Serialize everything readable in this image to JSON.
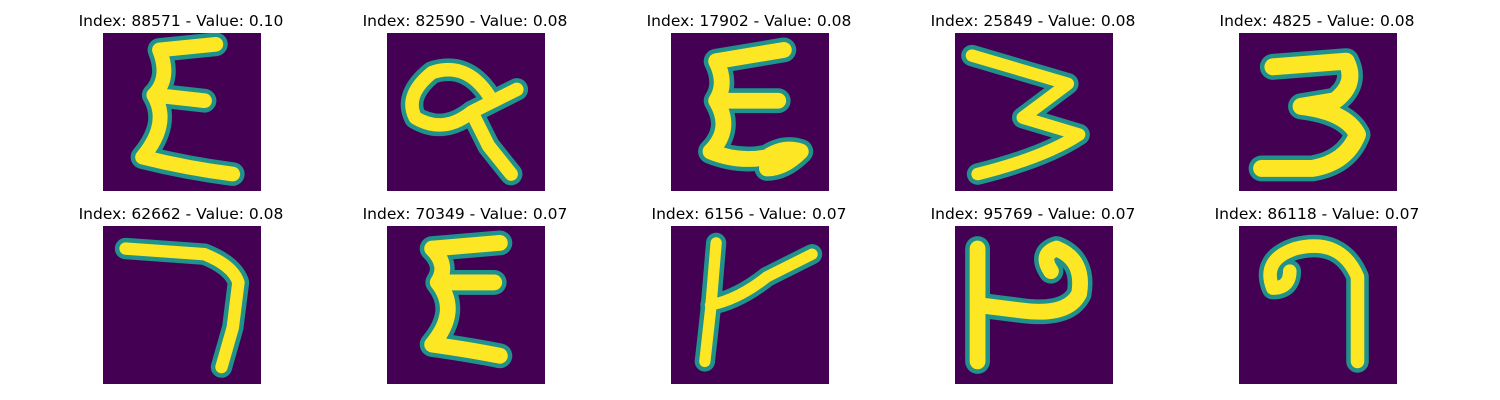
{
  "panels": [
    {
      "title": "Index: 88571 - Value: 0.10",
      "glyph": "epsilon"
    },
    {
      "title": "Index: 82590 - Value: 0.08",
      "glyph": "alpha"
    },
    {
      "title": "Index: 17902 - Value: 0.08",
      "glyph": "epsilon-tail"
    },
    {
      "title": "Index: 25849 - Value: 0.08",
      "glyph": "three-wide"
    },
    {
      "title": "Index: 4825 - Value: 0.08",
      "glyph": "three"
    },
    {
      "title": "Index: 62662 - Value: 0.08",
      "glyph": "seven"
    },
    {
      "title": "Index: 70349 - Value: 0.07",
      "glyph": "epsilon"
    },
    {
      "title": "Index: 6156 - Value: 0.07",
      "glyph": "t-cross"
    },
    {
      "title": "Index: 95769 - Value: 0.07",
      "glyph": "loop-h"
    },
    {
      "title": "Index: 86118 - Value: 0.07",
      "glyph": "hook"
    }
  ],
  "colors": {
    "background": "#440154",
    "stroke_core": "#fde725",
    "stroke_edge": "#21918c"
  }
}
